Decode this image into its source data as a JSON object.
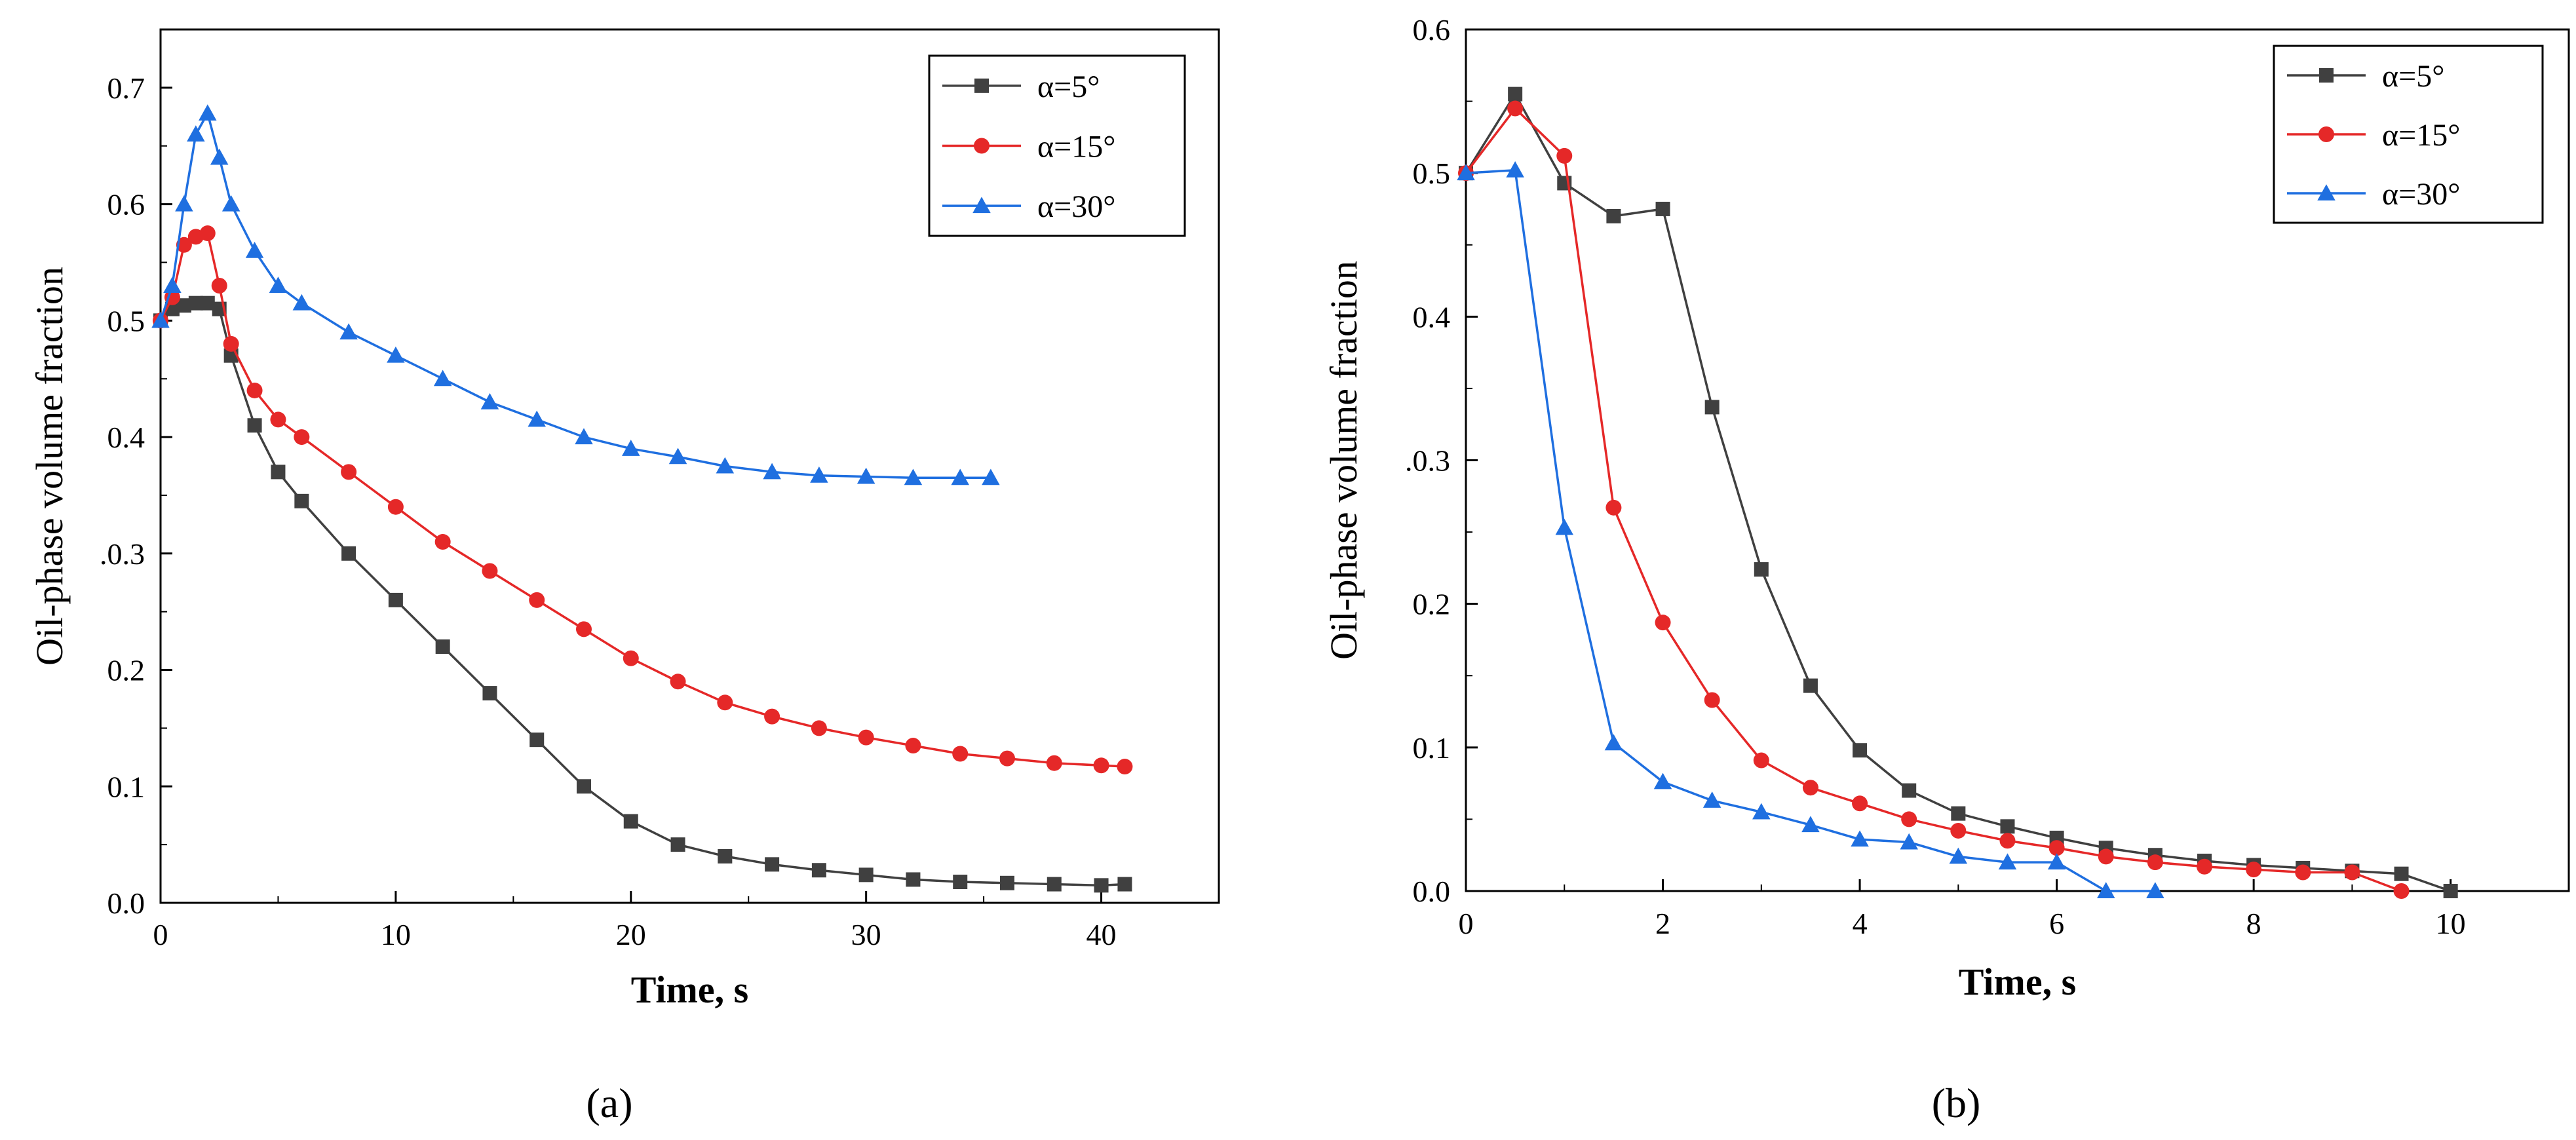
{
  "chart_data": [
    {
      "type": "line",
      "panel_label": "a",
      "xlabel": "Time, s",
      "ylabel": "Oil-phase volume fraction",
      "xlim": [
        0,
        45
      ],
      "ylim": [
        0,
        0.75
      ],
      "xticks": [
        0,
        10,
        20,
        30,
        40
      ],
      "xtick_labels": [
        "0",
        "10",
        "20",
        "30",
        "40"
      ],
      "yticks": [
        0.0,
        0.1,
        0.2,
        0.3,
        0.4,
        0.5,
        0.6,
        0.7
      ],
      "ytick_labels": [
        "0.0",
        "0.1",
        "0.2",
        ".0.3",
        "0.4",
        "0.5",
        "0.6",
        "0.7"
      ],
      "legend_position": "top-right",
      "series": [
        {
          "name": "α=5°",
          "color": "#404040",
          "marker": "square",
          "x": [
            0,
            0.5,
            1.0,
            1.5,
            2.0,
            2.5,
            3.0,
            4.0,
            5.0,
            6.0,
            8.0,
            10.0,
            12.0,
            14.0,
            16.0,
            18.0,
            20.0,
            22.0,
            24.0,
            26.0,
            28.0,
            30.0,
            32.0,
            34.0,
            36.0,
            38.0,
            40.0,
            41.0
          ],
          "y": [
            0.5,
            0.51,
            0.513,
            0.515,
            0.515,
            0.51,
            0.47,
            0.41,
            0.37,
            0.345,
            0.3,
            0.26,
            0.22,
            0.18,
            0.14,
            0.1,
            0.07,
            0.05,
            0.04,
            0.033,
            0.028,
            0.024,
            0.02,
            0.018,
            0.017,
            0.016,
            0.015,
            0.016
          ]
        },
        {
          "name": "α=15°",
          "color": "#e52828",
          "marker": "circle",
          "x": [
            0,
            0.5,
            1.0,
            1.5,
            2.0,
            2.5,
            3.0,
            4.0,
            5.0,
            6.0,
            8.0,
            10.0,
            12.0,
            14.0,
            16.0,
            18.0,
            20.0,
            22.0,
            24.0,
            26.0,
            28.0,
            30.0,
            32.0,
            34.0,
            36.0,
            38.0,
            40.0,
            41.0
          ],
          "y": [
            0.5,
            0.52,
            0.565,
            0.572,
            0.575,
            0.53,
            0.48,
            0.44,
            0.415,
            0.4,
            0.37,
            0.34,
            0.31,
            0.285,
            0.26,
            0.235,
            0.21,
            0.19,
            0.172,
            0.16,
            0.15,
            0.142,
            0.135,
            0.128,
            0.124,
            0.12,
            0.118,
            0.117
          ]
        },
        {
          "name": "α=30°",
          "color": "#1f6fe0",
          "marker": "triangle",
          "x": [
            0,
            0.5,
            1.0,
            1.5,
            2.0,
            2.5,
            3.0,
            4.0,
            5.0,
            6.0,
            8.0,
            10.0,
            12.0,
            14.0,
            16.0,
            18.0,
            20.0,
            22.0,
            24.0,
            26.0,
            28.0,
            30.0,
            32.0,
            34.0,
            35.3
          ],
          "y": [
            0.5,
            0.53,
            0.6,
            0.66,
            0.678,
            0.64,
            0.6,
            0.56,
            0.53,
            0.515,
            0.49,
            0.47,
            0.45,
            0.43,
            0.415,
            0.4,
            0.39,
            0.383,
            0.375,
            0.37,
            0.367,
            0.366,
            0.365,
            0.365,
            0.365
          ]
        }
      ]
    },
    {
      "type": "line",
      "panel_label": "b",
      "xlabel": "Time, s",
      "ylabel": "Oil-phase volume fraction",
      "xlim": [
        0,
        11.2
      ],
      "ylim": [
        0,
        0.6
      ],
      "xticks": [
        0,
        2,
        4,
        6,
        8,
        10
      ],
      "xtick_labels": [
        "0",
        "2",
        "4",
        "6",
        "8",
        "10"
      ],
      "yticks": [
        0.0,
        0.1,
        0.2,
        0.3,
        0.4,
        0.5,
        0.6
      ],
      "ytick_labels": [
        "0.0",
        "0.1",
        "0.2",
        ".0.3",
        "0.4",
        "0.5",
        "0.6"
      ],
      "legend_position": "top-right",
      "series": [
        {
          "name": "α=5°",
          "color": "#404040",
          "marker": "square",
          "x": [
            0,
            0.5,
            1.0,
            1.5,
            2.0,
            2.5,
            3.0,
            3.5,
            4.0,
            4.5,
            5.0,
            5.5,
            6.0,
            6.5,
            7.0,
            7.5,
            8.0,
            8.5,
            9.0,
            9.5,
            10.0
          ],
          "y": [
            0.5,
            0.555,
            0.493,
            0.47,
            0.475,
            0.337,
            0.224,
            0.143,
            0.098,
            0.07,
            0.054,
            0.045,
            0.037,
            0.03,
            0.025,
            0.021,
            0.018,
            0.016,
            0.014,
            0.012,
            0.0
          ]
        },
        {
          "name": "α=15°",
          "color": "#e52828",
          "marker": "circle",
          "x": [
            0,
            0.5,
            1.0,
            1.5,
            2.0,
            2.5,
            3.0,
            3.5,
            4.0,
            4.5,
            5.0,
            5.5,
            6.0,
            6.5,
            7.0,
            7.5,
            8.0,
            8.5,
            9.0,
            9.5
          ],
          "y": [
            0.5,
            0.545,
            0.512,
            0.267,
            0.187,
            0.133,
            0.091,
            0.072,
            0.061,
            0.05,
            0.042,
            0.035,
            0.03,
            0.024,
            0.02,
            0.017,
            0.015,
            0.013,
            0.013,
            0.0
          ]
        },
        {
          "name": "α=30°",
          "color": "#1f6fe0",
          "marker": "triangle",
          "x": [
            0,
            0.5,
            1.0,
            1.5,
            2.0,
            2.5,
            3.0,
            3.5,
            4.0,
            4.5,
            5.0,
            5.5,
            6.0,
            6.5,
            7.0
          ],
          "y": [
            0.5,
            0.502,
            0.253,
            0.103,
            0.076,
            0.063,
            0.055,
            0.046,
            0.036,
            0.034,
            0.024,
            0.02,
            0.02,
            0.0,
            0.0
          ]
        }
      ]
    }
  ],
  "captions": {
    "a": "(a)",
    "b": "(b)"
  }
}
